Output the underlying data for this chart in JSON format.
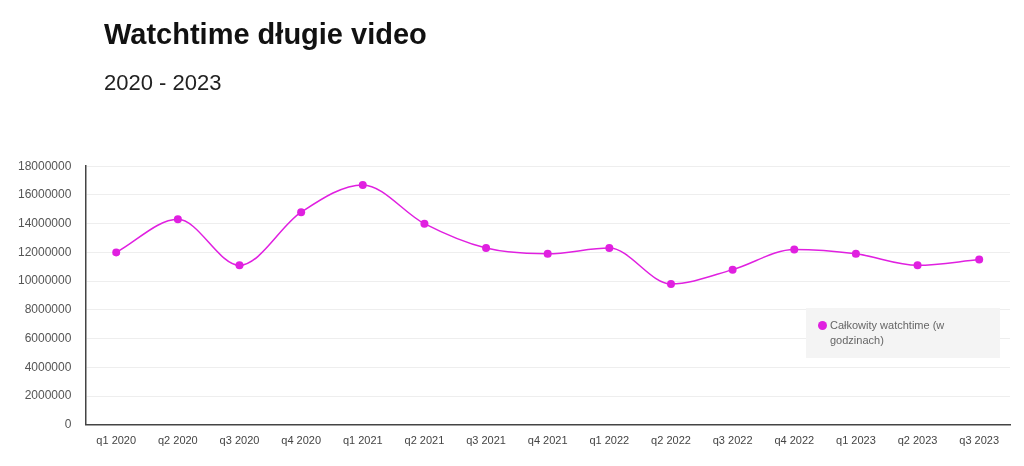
{
  "chart_data": {
    "type": "line",
    "title": "Watchtime długie video",
    "subtitle": "2020 - 2023",
    "categories": [
      "q1 2020",
      "q2 2020",
      "q3 2020",
      "q4 2020",
      "q1 2021",
      "q2 2021",
      "q3 2021",
      "q4 2021",
      "q1 2022",
      "q2 2022",
      "q3 2022",
      "q4 2022",
      "q1 2023",
      "q2 2023",
      "q3 2023"
    ],
    "series": [
      {
        "name": "Całkowity watchtime (w godzinach)",
        "color": "#e020e0",
        "values": [
          12000000,
          14300000,
          11100000,
          14800000,
          16700000,
          14000000,
          12300000,
          11900000,
          12300000,
          9800000,
          10800000,
          12200000,
          11900000,
          11100000,
          11500000
        ]
      }
    ],
    "ylim": [
      0,
      18000000
    ],
    "yticks": [
      0,
      2000000,
      4000000,
      6000000,
      8000000,
      10000000,
      12000000,
      14000000,
      16000000,
      18000000
    ],
    "grid": "y",
    "legend": "bottom right",
    "marker": "circle",
    "line_style": "solid"
  }
}
